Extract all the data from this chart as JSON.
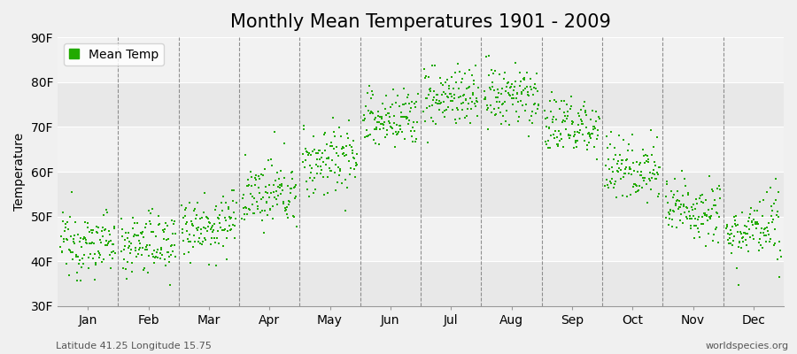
{
  "title": "Monthly Mean Temperatures 1901 - 2009",
  "ylabel": "Temperature",
  "xlabel_labels": [
    "Jan",
    "Feb",
    "Mar",
    "Apr",
    "May",
    "Jun",
    "Jul",
    "Aug",
    "Sep",
    "Oct",
    "Nov",
    "Dec"
  ],
  "ytick_labels": [
    "30F",
    "40F",
    "50F",
    "60F",
    "70F",
    "80F",
    "90F"
  ],
  "ytick_values": [
    30,
    40,
    50,
    60,
    70,
    80,
    90
  ],
  "ylim": [
    30,
    90
  ],
  "dot_color": "#22aa00",
  "dot_size": 2.5,
  "legend_label": "Mean Temp",
  "background_color": "#f0f0f0",
  "plot_bg_color": "#e8e8e8",
  "band_colors": [
    "#e8e8e8",
    "#f2f2f2"
  ],
  "footer_left": "Latitude 41.25 Longitude 15.75",
  "footer_right": "worldspecies.org",
  "title_fontsize": 15,
  "axis_fontsize": 10,
  "tick_fontsize": 10,
  "monthly_means": [
    44.0,
    44.0,
    48.0,
    54.5,
    62.0,
    71.0,
    76.5,
    76.5,
    70.0,
    60.5,
    51.5,
    46.5
  ],
  "monthly_stds": [
    3.5,
    3.5,
    3.5,
    3.5,
    4.0,
    3.5,
    3.5,
    3.5,
    3.5,
    3.5,
    3.5,
    3.5
  ],
  "monthly_trends": [
    0.0,
    0.0,
    0.5,
    1.0,
    1.5,
    1.5,
    0.5,
    0.5,
    0.5,
    0.5,
    0.5,
    0.5
  ],
  "n_years": 109,
  "start_year": 1901,
  "end_year": 2009
}
